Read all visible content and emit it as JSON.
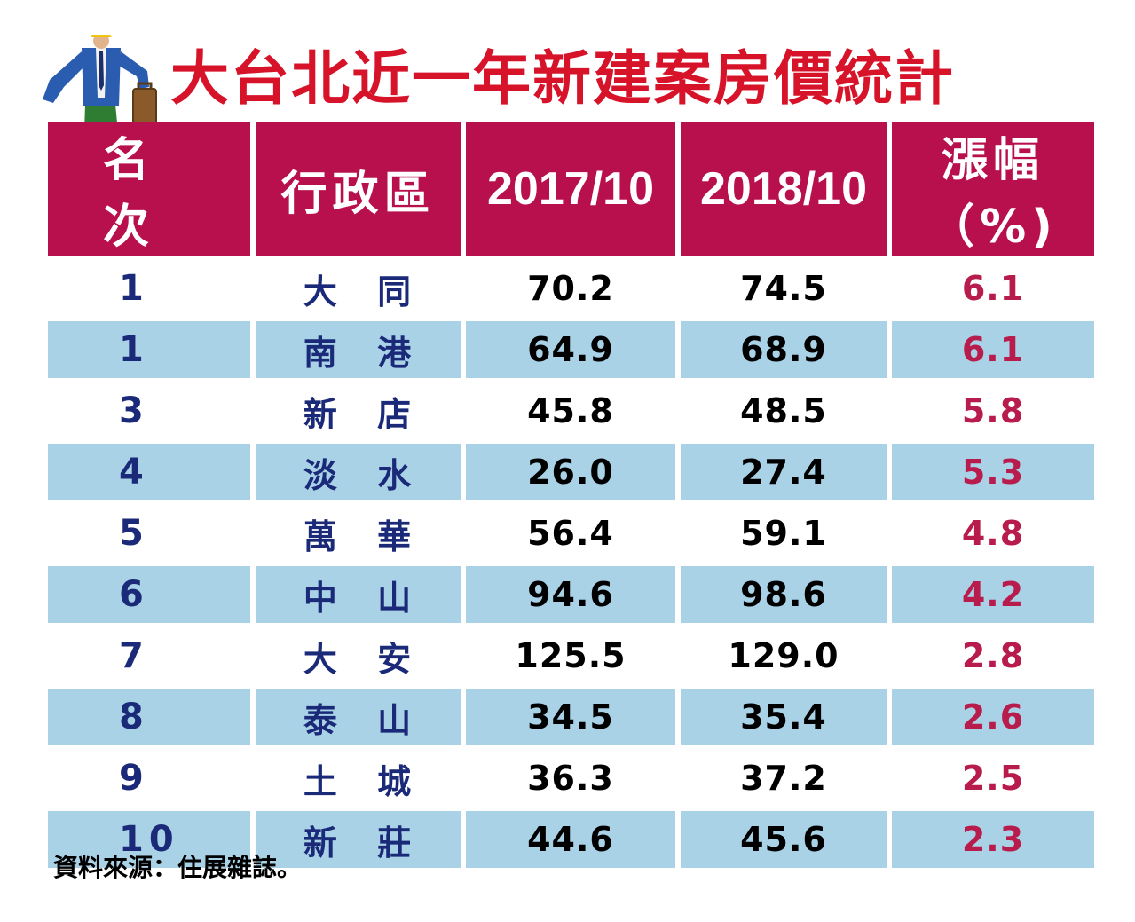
{
  "title": "大台北近一年新建案房價統計",
  "colors": {
    "title": "#d7132a",
    "header_bg": "#b80f4d",
    "row_odd_bg": "#ffffff",
    "row_even_bg": "#a9d2e7",
    "rank_text": "#1a2a78",
    "district_text": "#1a2a78",
    "pct_text": "#b81c4d"
  },
  "chart_data": {
    "type": "table",
    "columns": [
      "名 次",
      "行政區",
      "2017/10",
      "2018/10",
      "漲幅（%)"
    ],
    "rows": [
      {
        "rank": "1",
        "district": "大 同",
        "y2017": "70.2",
        "y2018": "74.5",
        "pct": "6.1"
      },
      {
        "rank": "1",
        "district": "南 港",
        "y2017": "64.9",
        "y2018": "68.9",
        "pct": "6.1"
      },
      {
        "rank": "3",
        "district": "新 店",
        "y2017": "45.8",
        "y2018": "48.5",
        "pct": "5.8"
      },
      {
        "rank": "4",
        "district": "淡 水",
        "y2017": "26.0",
        "y2018": "27.4",
        "pct": "5.3"
      },
      {
        "rank": "5",
        "district": "萬 華",
        "y2017": "56.4",
        "y2018": "59.1",
        "pct": "4.8"
      },
      {
        "rank": "6",
        "district": "中 山",
        "y2017": "94.6",
        "y2018": "98.6",
        "pct": "4.2"
      },
      {
        "rank": "7",
        "district": "大 安",
        "y2017": "125.5",
        "y2018": "129.0",
        "pct": "2.8"
      },
      {
        "rank": "8",
        "district": "泰 山",
        "y2017": "34.5",
        "y2018": "35.4",
        "pct": "2.6"
      },
      {
        "rank": "9",
        "district": "土 城",
        "y2017": "36.3",
        "y2018": "37.2",
        "pct": "2.5"
      },
      {
        "rank": "10",
        "district": "新 莊",
        "y2017": "44.6",
        "y2018": "45.6",
        "pct": "2.3"
      }
    ]
  },
  "illustration": {
    "icon": "businessman-with-briefcase-icon"
  },
  "source": "資料來源：住展雜誌。"
}
